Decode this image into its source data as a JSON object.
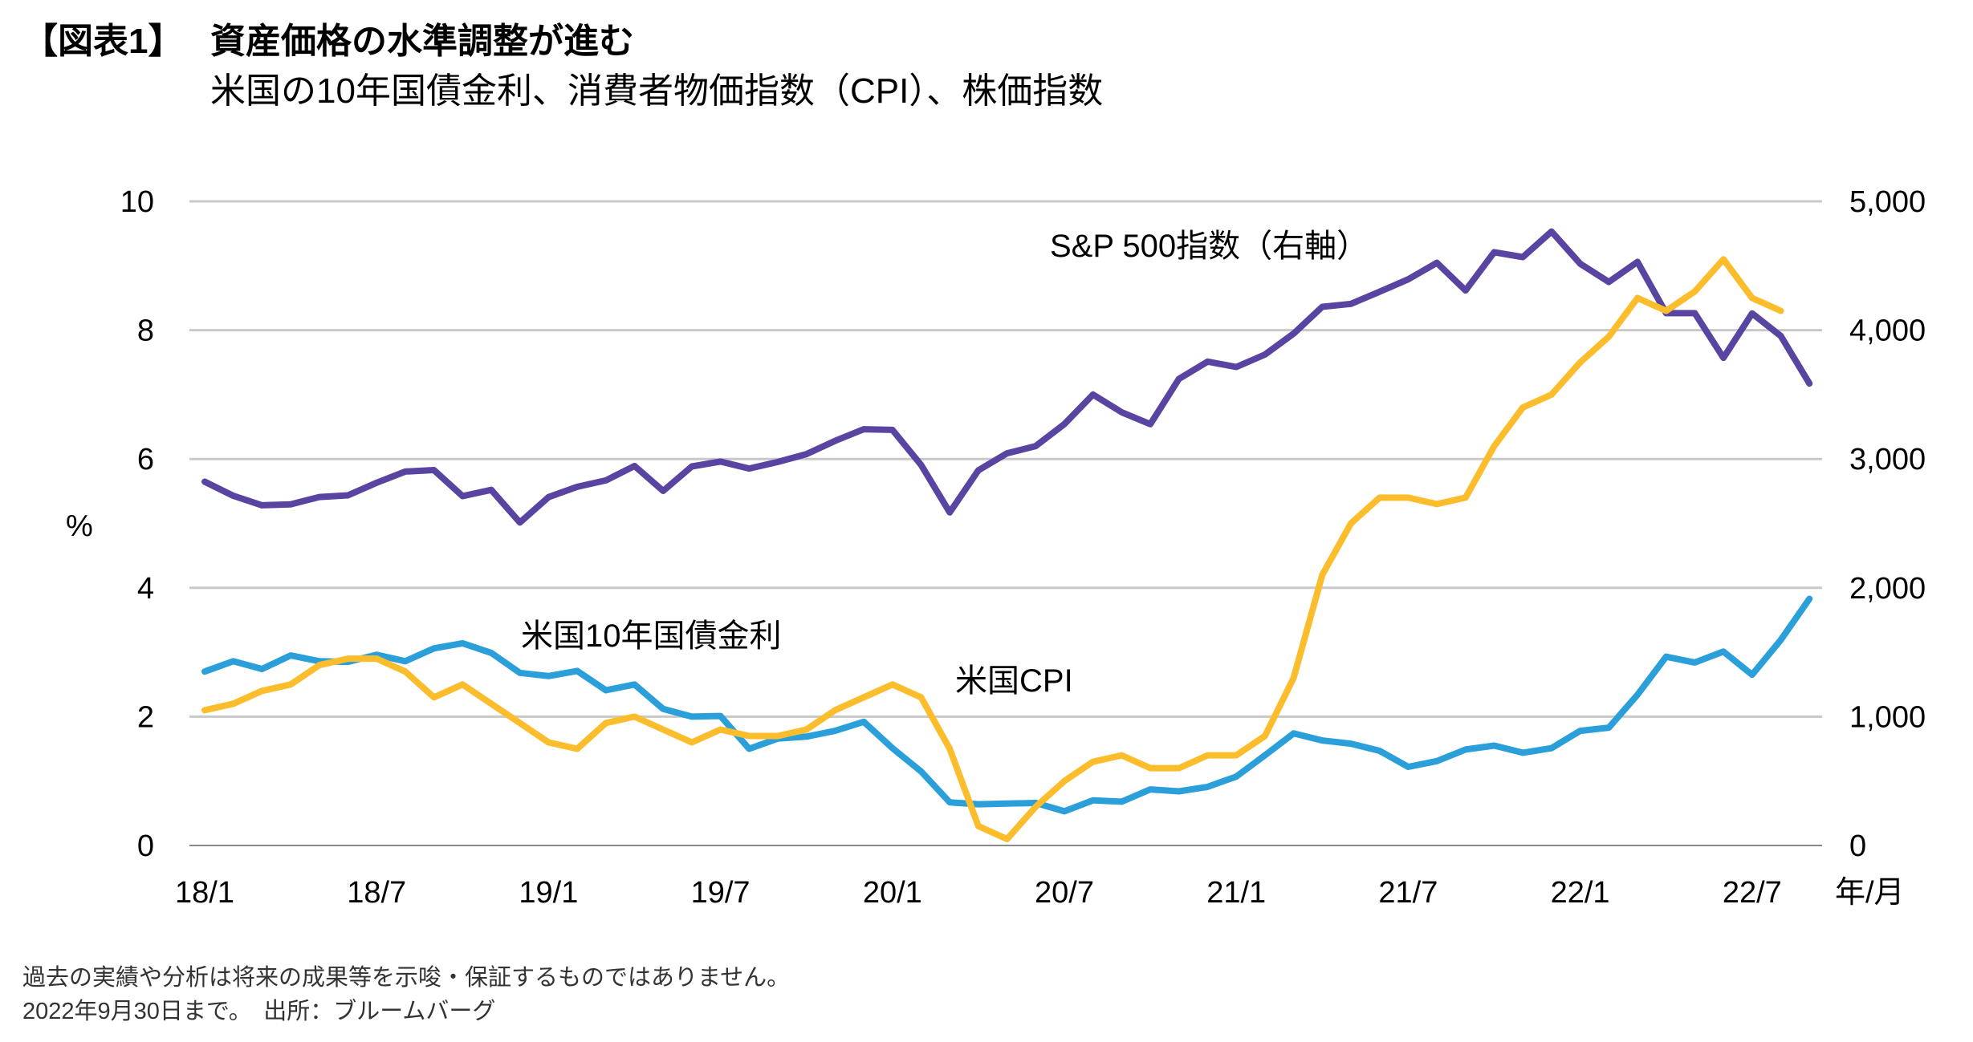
{
  "header": {
    "figure_no": "【図表1】",
    "title": "資産価格の水準調整が進む",
    "subtitle": "米国の10年国債金利、消費者物価指数（CPI）、株価指数"
  },
  "footer": {
    "note1": "過去の実績や分析は将来の成果等を示唆・保証するものではありません。",
    "note2": "2022年9月30日まで。　出所：ブルームバーグ"
  },
  "chart_data": {
    "type": "line",
    "x_start": "2018/1",
    "x_end": "2022/9",
    "x_frequency": "monthly",
    "xlabel": "年/月",
    "x_ticks": [
      "18/1",
      "18/7",
      "19/1",
      "19/7",
      "20/1",
      "20/7",
      "21/1",
      "21/7",
      "22/1",
      "22/7"
    ],
    "ylabel_left": "%",
    "ylim_left": [
      0,
      10
    ],
    "y_ticks_left": [
      "0",
      "2",
      "4",
      "6",
      "8",
      "10"
    ],
    "ylim_right": [
      0,
      5000
    ],
    "y_ticks_right": [
      "0",
      "1,000",
      "2,000",
      "3,000",
      "4,000",
      "5,000"
    ],
    "grid": true,
    "series": [
      {
        "name": "S&P 500指数（右軸）",
        "axis": "right",
        "color": "#5a44a2",
        "values": [
          2824,
          2714,
          2641,
          2648,
          2705,
          2718,
          2816,
          2902,
          2914,
          2712,
          2760,
          2507,
          2704,
          2784,
          2834,
          2946,
          2752,
          2942,
          2980,
          2926,
          2977,
          3038,
          3141,
          3231,
          3226,
          2954,
          2585,
          2912,
          3044,
          3100,
          3271,
          3500,
          3363,
          3270,
          3622,
          3756,
          3714,
          3811,
          3973,
          4181,
          4204,
          4298,
          4395,
          4523,
          4308,
          4605,
          4567,
          4766,
          4516,
          4374,
          4530,
          4132,
          4132,
          3785,
          4130,
          3955,
          3586
        ]
      },
      {
        "name": "米国10年国債金利",
        "axis": "left",
        "color": "#2b9fd9",
        "values": [
          2.7,
          2.86,
          2.74,
          2.95,
          2.86,
          2.85,
          2.96,
          2.86,
          3.06,
          3.14,
          2.99,
          2.68,
          2.63,
          2.71,
          2.41,
          2.5,
          2.12,
          2.0,
          2.01,
          1.5,
          1.66,
          1.69,
          1.78,
          1.92,
          1.51,
          1.15,
          0.67,
          0.64,
          0.65,
          0.66,
          0.53,
          0.7,
          0.68,
          0.87,
          0.84,
          0.91,
          1.07,
          1.4,
          1.74,
          1.63,
          1.58,
          1.47,
          1.22,
          1.31,
          1.49,
          1.55,
          1.44,
          1.51,
          1.78,
          1.83,
          2.34,
          2.93,
          2.84,
          3.01,
          2.65,
          3.19,
          3.83
        ]
      },
      {
        "name": "米国CPI",
        "axis": "left",
        "color": "#fbbd2c",
        "values": [
          2.1,
          2.2,
          2.4,
          2.5,
          2.8,
          2.9,
          2.9,
          2.7,
          2.3,
          2.5,
          2.2,
          1.9,
          1.6,
          1.5,
          1.9,
          2.0,
          1.8,
          1.6,
          1.8,
          1.7,
          1.7,
          1.8,
          2.1,
          2.3,
          2.5,
          2.3,
          1.5,
          0.3,
          0.1,
          0.6,
          1.0,
          1.3,
          1.4,
          1.2,
          1.2,
          1.4,
          1.4,
          1.7,
          2.6,
          4.2,
          5.0,
          5.4,
          5.4,
          5.3,
          5.4,
          6.2,
          6.8,
          7.0,
          7.5,
          7.9,
          8.5,
          8.3,
          8.6,
          9.1,
          8.5,
          8.3
        ]
      }
    ]
  }
}
